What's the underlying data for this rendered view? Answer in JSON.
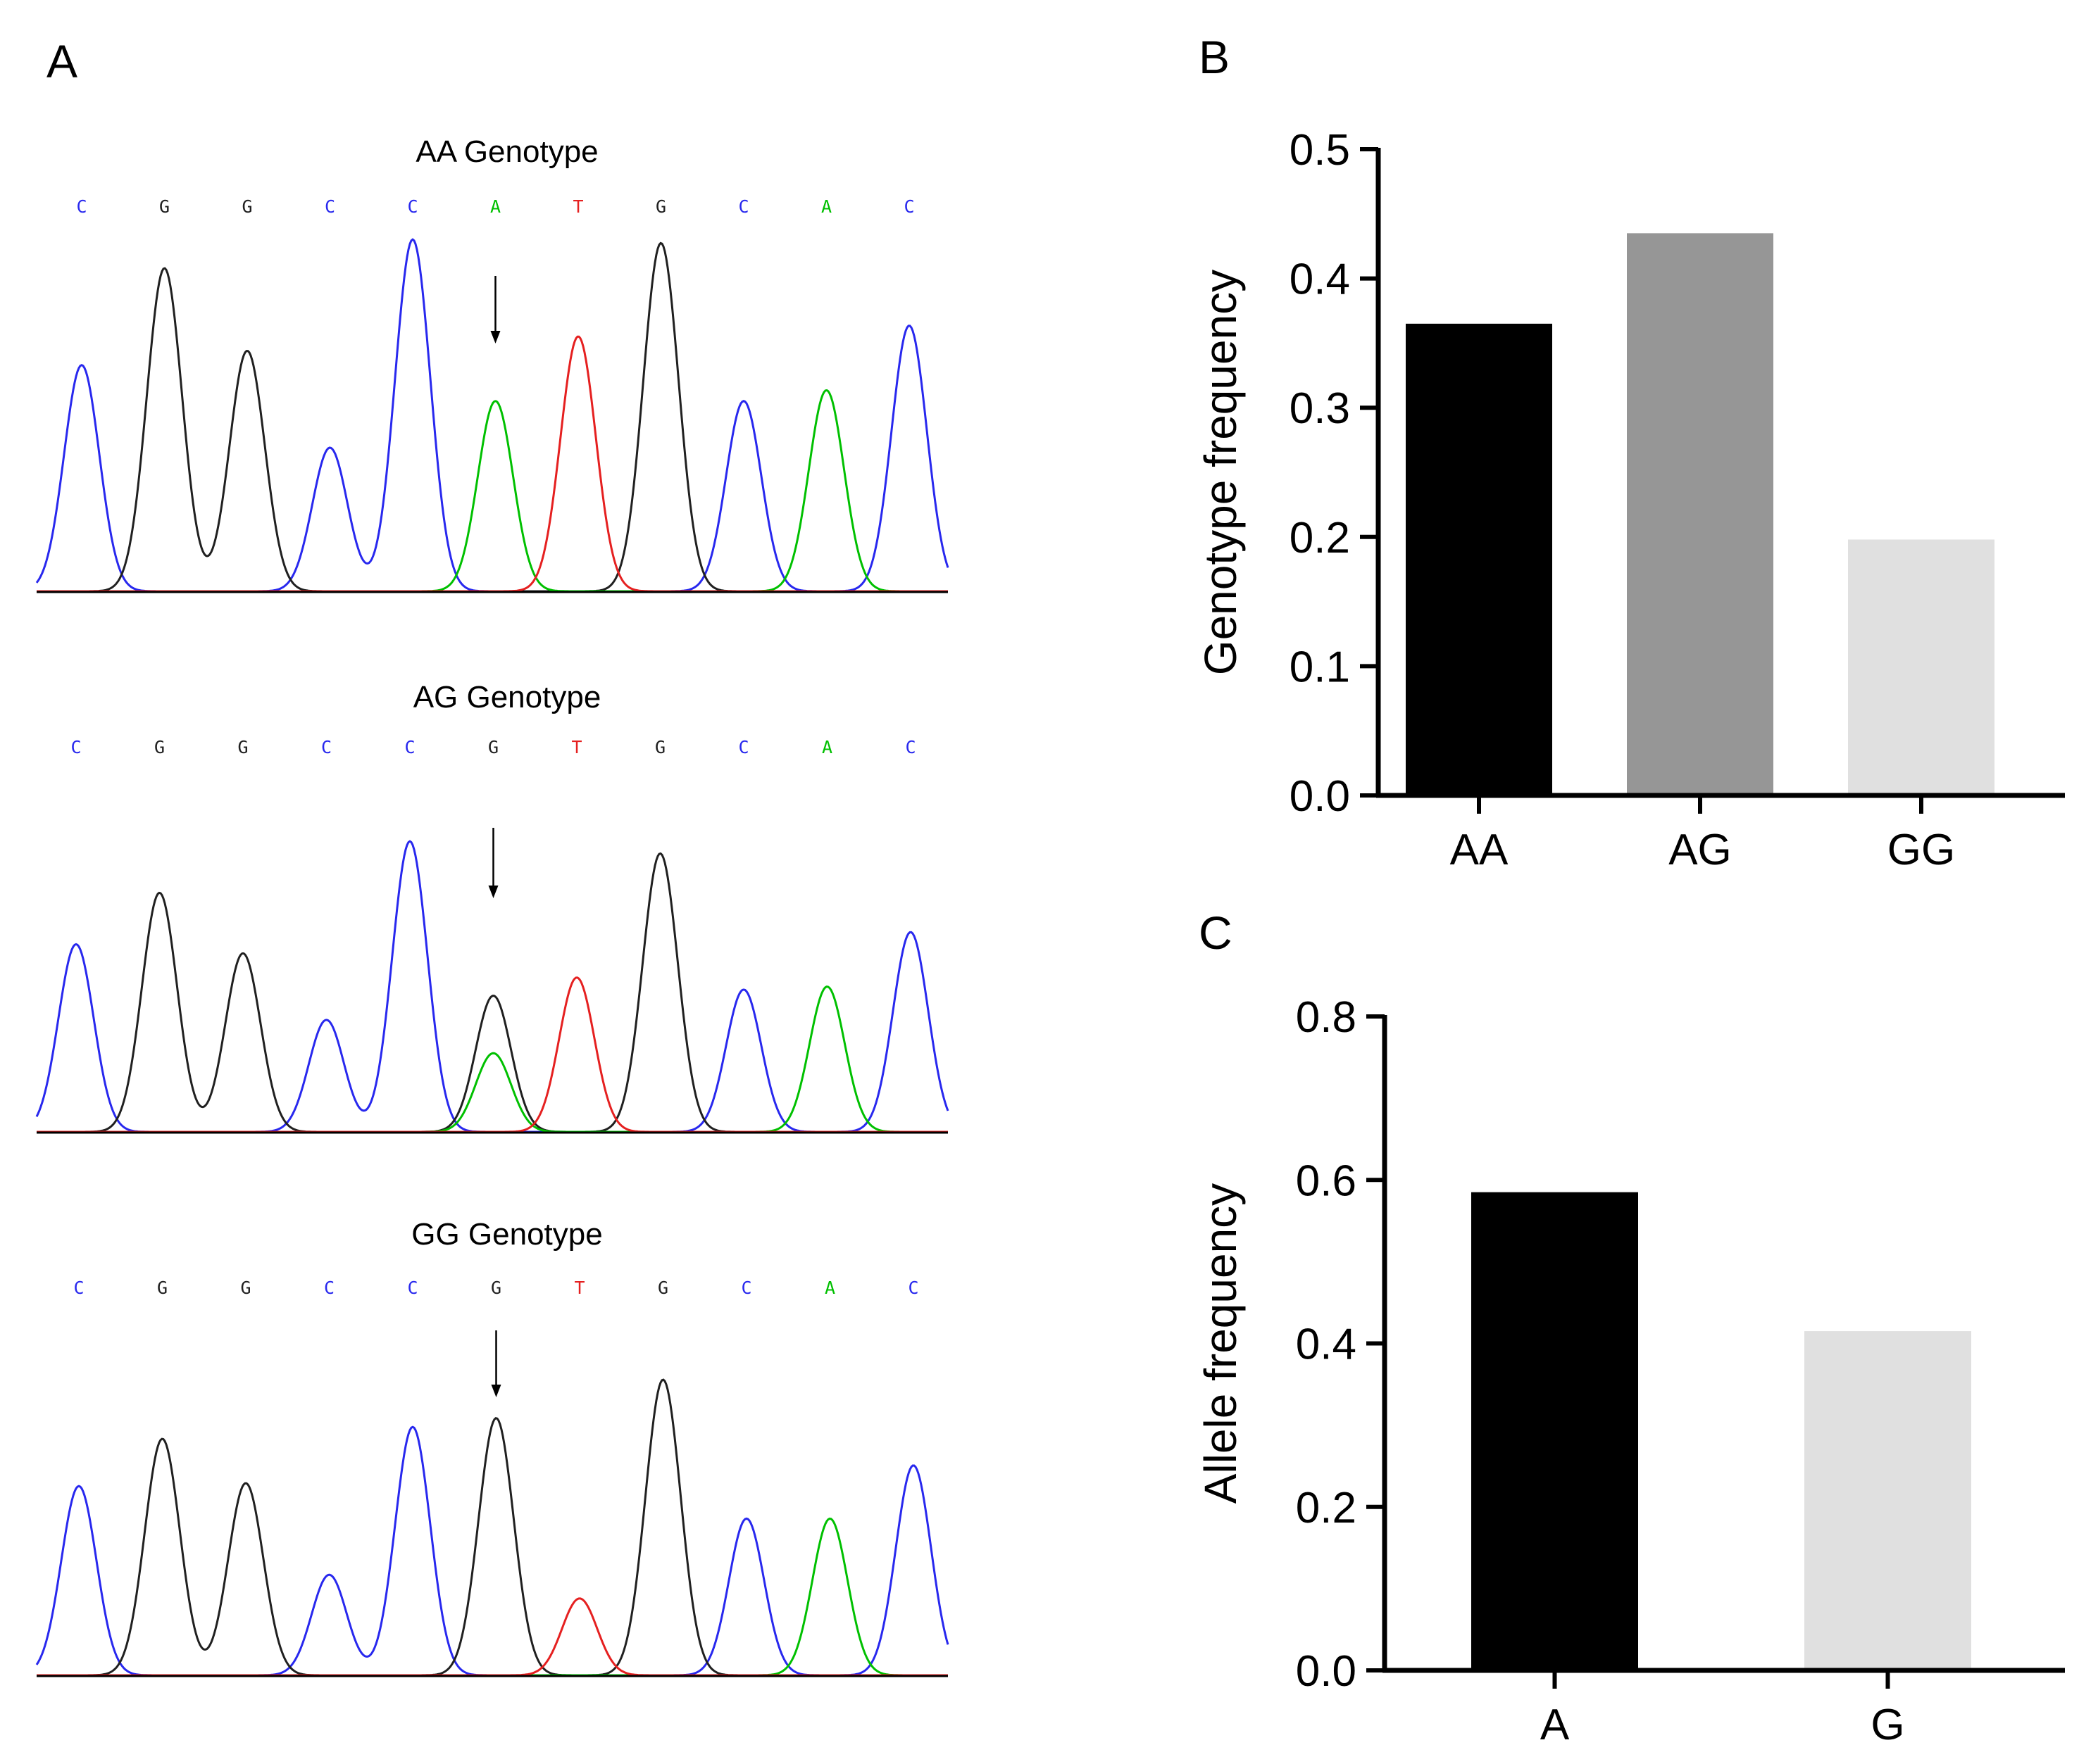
{
  "colors": {
    "A": "#00c000",
    "C": "#2828ee",
    "G": "#202020",
    "T": "#e52020",
    "axis": "#000000"
  },
  "chromatograms": {
    "panel_label": "A",
    "traces": [
      {
        "title": "AA Genotype",
        "bases": [
          "C",
          "G",
          "G",
          "C",
          "C",
          "A",
          "T",
          "G",
          "C",
          "A",
          "C"
        ],
        "arrow_at_base": 5,
        "peaks": [
          {
            "ch": "C",
            "pos": 0,
            "h": 0.63
          },
          {
            "ch": "G",
            "pos": 1,
            "h": 0.9
          },
          {
            "ch": "G",
            "pos": 2,
            "h": 0.67
          },
          {
            "ch": "C",
            "pos": 3,
            "h": 0.4
          },
          {
            "ch": "C",
            "pos": 4,
            "h": 0.98
          },
          {
            "ch": "A",
            "pos": 5,
            "h": 0.53
          },
          {
            "ch": "T",
            "pos": 6,
            "h": 0.71
          },
          {
            "ch": "G",
            "pos": 7,
            "h": 0.97
          },
          {
            "ch": "C",
            "pos": 8,
            "h": 0.53
          },
          {
            "ch": "A",
            "pos": 9,
            "h": 0.56
          },
          {
            "ch": "C",
            "pos": 10,
            "h": 0.74
          }
        ]
      },
      {
        "title": "AG Genotype",
        "bases": [
          "C",
          "G",
          "G",
          "C",
          "C",
          "G",
          "T",
          "G",
          "C",
          "A",
          "C"
        ],
        "arrow_at_base": 5,
        "peaks": [
          {
            "ch": "C",
            "pos": 0,
            "h": 0.62
          },
          {
            "ch": "G",
            "pos": 1,
            "h": 0.79
          },
          {
            "ch": "G",
            "pos": 2,
            "h": 0.59
          },
          {
            "ch": "C",
            "pos": 3,
            "h": 0.37
          },
          {
            "ch": "C",
            "pos": 4,
            "h": 0.96
          },
          {
            "ch": "G",
            "pos": 5,
            "h": 0.45
          },
          {
            "ch": "A",
            "pos": 5,
            "h": 0.26
          },
          {
            "ch": "T",
            "pos": 6,
            "h": 0.51
          },
          {
            "ch": "G",
            "pos": 7,
            "h": 0.92
          },
          {
            "ch": "C",
            "pos": 8,
            "h": 0.47
          },
          {
            "ch": "A",
            "pos": 9,
            "h": 0.48
          },
          {
            "ch": "C",
            "pos": 10,
            "h": 0.66
          }
        ]
      },
      {
        "title": "GG Genotype",
        "bases": [
          "C",
          "G",
          "G",
          "C",
          "C",
          "G",
          "T",
          "G",
          "C",
          "A",
          "C"
        ],
        "arrow_at_base": 5,
        "peaks": [
          {
            "ch": "C",
            "pos": 0,
            "h": 0.64
          },
          {
            "ch": "G",
            "pos": 1,
            "h": 0.8
          },
          {
            "ch": "G",
            "pos": 2,
            "h": 0.65
          },
          {
            "ch": "C",
            "pos": 3,
            "h": 0.34
          },
          {
            "ch": "C",
            "pos": 4,
            "h": 0.84
          },
          {
            "ch": "G",
            "pos": 5,
            "h": 0.87
          },
          {
            "ch": "T",
            "pos": 6,
            "h": 0.26
          },
          {
            "ch": "G",
            "pos": 7,
            "h": 1.0
          },
          {
            "ch": "C",
            "pos": 8,
            "h": 0.53
          },
          {
            "ch": "A",
            "pos": 9,
            "h": 0.53
          },
          {
            "ch": "C",
            "pos": 10,
            "h": 0.71
          }
        ]
      }
    ]
  },
  "chart_data": [
    {
      "panel_label": "B",
      "type": "bar",
      "title": "",
      "xlabel": "",
      "ylabel": "Genotype frequency",
      "categories": [
        "AA",
        "AG",
        "GG"
      ],
      "values": [
        0.365,
        0.435,
        0.198
      ],
      "colors": [
        "#000000",
        "#969696",
        "#e0e0e0"
      ],
      "ylim": [
        0,
        0.5
      ],
      "yticks": [
        0.0,
        0.1,
        0.2,
        0.3,
        0.4,
        0.5
      ],
      "ytick_labels": [
        "0.0",
        "0.1",
        "0.2",
        "0.3",
        "0.4",
        "0.5"
      ]
    },
    {
      "panel_label": "C",
      "type": "bar",
      "title": "",
      "xlabel": "",
      "ylabel": "Allele frequency",
      "categories": [
        "A",
        "G"
      ],
      "values": [
        0.585,
        0.415
      ],
      "colors": [
        "#000000",
        "#e0e0e0"
      ],
      "ylim": [
        0,
        0.8
      ],
      "yticks": [
        0.0,
        0.2,
        0.4,
        0.6,
        0.8
      ],
      "ytick_labels": [
        "0.0",
        "0.2",
        "0.4",
        "0.6",
        "0.8"
      ]
    }
  ]
}
